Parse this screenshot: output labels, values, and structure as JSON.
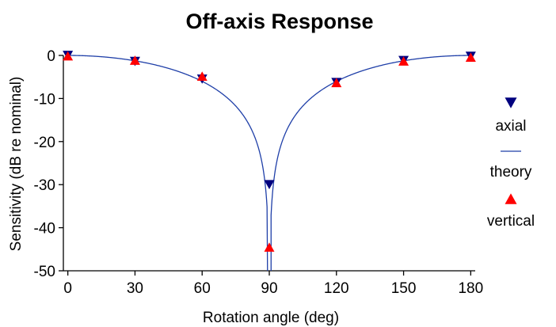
{
  "chart_data": {
    "type": "line",
    "title": "Off-axis Response",
    "xlabel": "Rotation angle (deg)",
    "ylabel": "Sensitivity (dB re nominal)",
    "xlim": [
      -2,
      182
    ],
    "ylim": [
      -50,
      0
    ],
    "x_ticks": [
      0,
      30,
      60,
      90,
      120,
      150,
      180
    ],
    "y_ticks": [
      0,
      -10,
      -20,
      -30,
      -40,
      -50
    ],
    "x_tick_labels": [
      "0",
      "30",
      "60",
      "90",
      "120",
      "150",
      "180"
    ],
    "y_tick_labels": [
      "0",
      "-10",
      "-20",
      "-30",
      "-40",
      "-50"
    ],
    "grid": false,
    "legend_position": "right",
    "series": [
      {
        "name": "axial",
        "kind": "scatter",
        "marker": "triangle-down",
        "color": "#00007f",
        "x": [
          0,
          30,
          60,
          90,
          120,
          150,
          180
        ],
        "y": [
          0,
          -1.4,
          -5.5,
          -30,
          -6.3,
          -1.2,
          -0.2
        ]
      },
      {
        "name": "theory",
        "kind": "line",
        "formula": "20*log10(|cos(angle)|)",
        "color": "#1f3fa8"
      },
      {
        "name": "vertical",
        "kind": "scatter",
        "marker": "triangle-up",
        "color": "#ff0000",
        "x": [
          0,
          30,
          60,
          90,
          120,
          150,
          180
        ],
        "y": [
          -0.1,
          -1.1,
          -4.8,
          -44.5,
          -6.3,
          -1.3,
          -0.4
        ]
      }
    ]
  }
}
